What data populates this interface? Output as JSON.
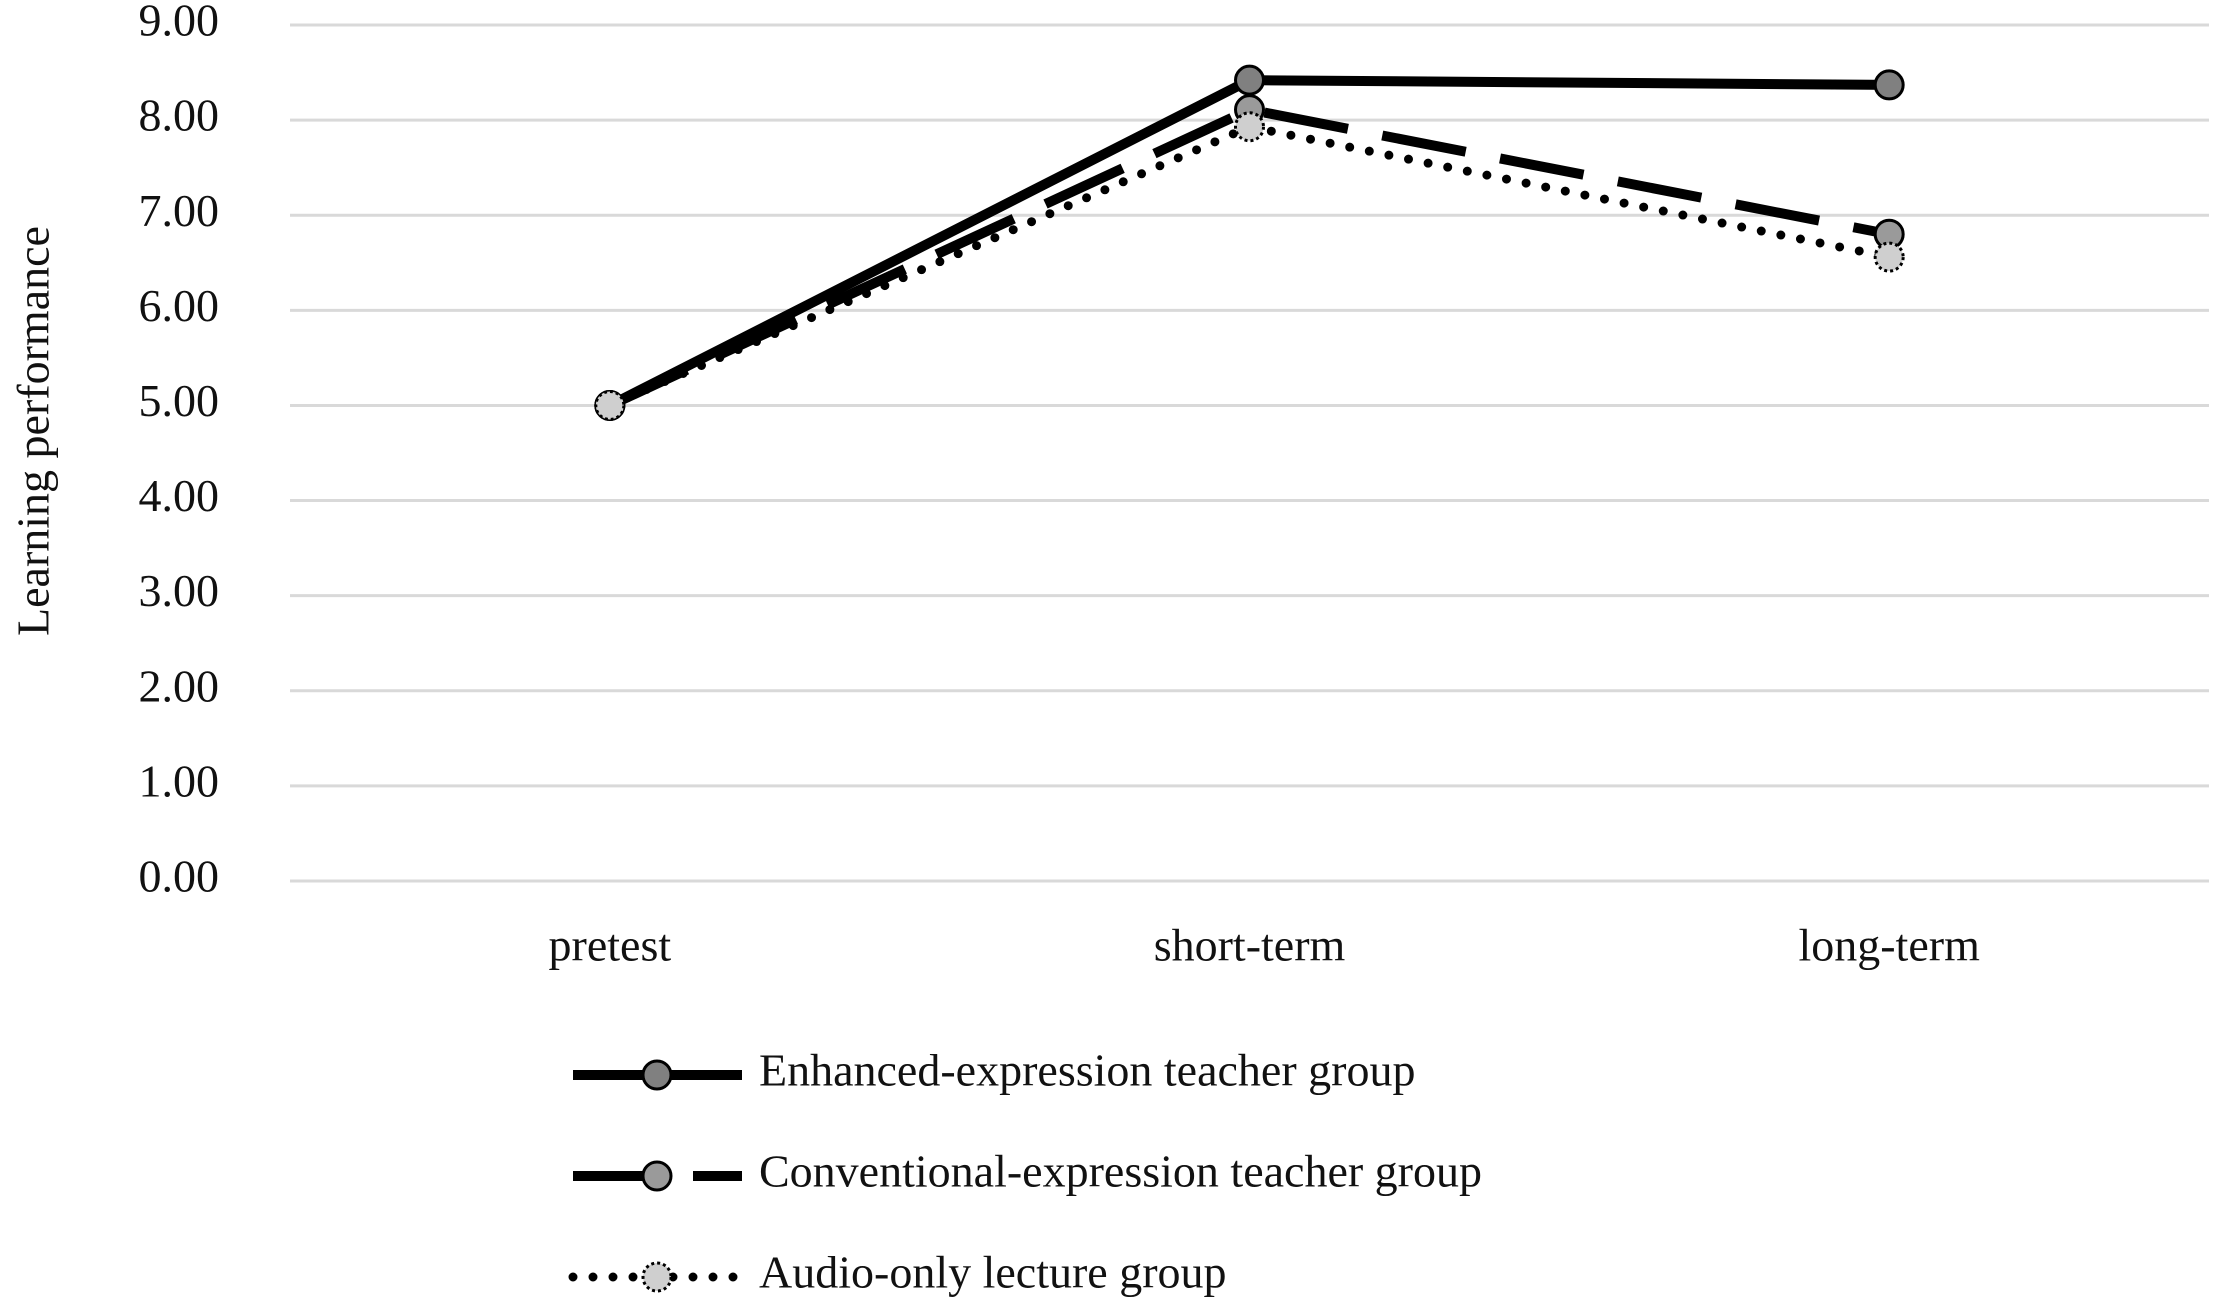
{
  "chart_data": {
    "type": "line",
    "y_label": "Learning performance",
    "categories": [
      "pretest",
      "short-term",
      "long-term"
    ],
    "series": [
      {
        "name": "Enhanced-expression teacher group",
        "color": "#000000",
        "marker_color": "#808080",
        "dash": "solid",
        "values": [
          5.0,
          8.42,
          8.37
        ]
      },
      {
        "name": "Conventional-expression teacher group",
        "color": "#000000",
        "marker_color": "#9a9a9a",
        "dash": "dash",
        "values": [
          5.0,
          8.11,
          6.8
        ]
      },
      {
        "name": "Audio-only lecture group",
        "color": "#000000",
        "marker_color": "#cfcfcf",
        "dash": "dot",
        "values": [
          5.0,
          7.93,
          6.56
        ]
      }
    ],
    "ylim": [
      0,
      9
    ],
    "yticks": [
      {
        "value": 0,
        "label": "0.00"
      },
      {
        "value": 1,
        "label": "1.00"
      },
      {
        "value": 2,
        "label": "2.00"
      },
      {
        "value": 3,
        "label": "3.00"
      },
      {
        "value": 4,
        "label": "4.00"
      },
      {
        "value": 5,
        "label": "5.00"
      },
      {
        "value": 6,
        "label": "6.00"
      },
      {
        "value": 7,
        "label": "7.00"
      },
      {
        "value": 8,
        "label": "8.00"
      },
      {
        "value": 9,
        "label": "9.00"
      }
    ],
    "grid": true,
    "legend": "bottom"
  }
}
